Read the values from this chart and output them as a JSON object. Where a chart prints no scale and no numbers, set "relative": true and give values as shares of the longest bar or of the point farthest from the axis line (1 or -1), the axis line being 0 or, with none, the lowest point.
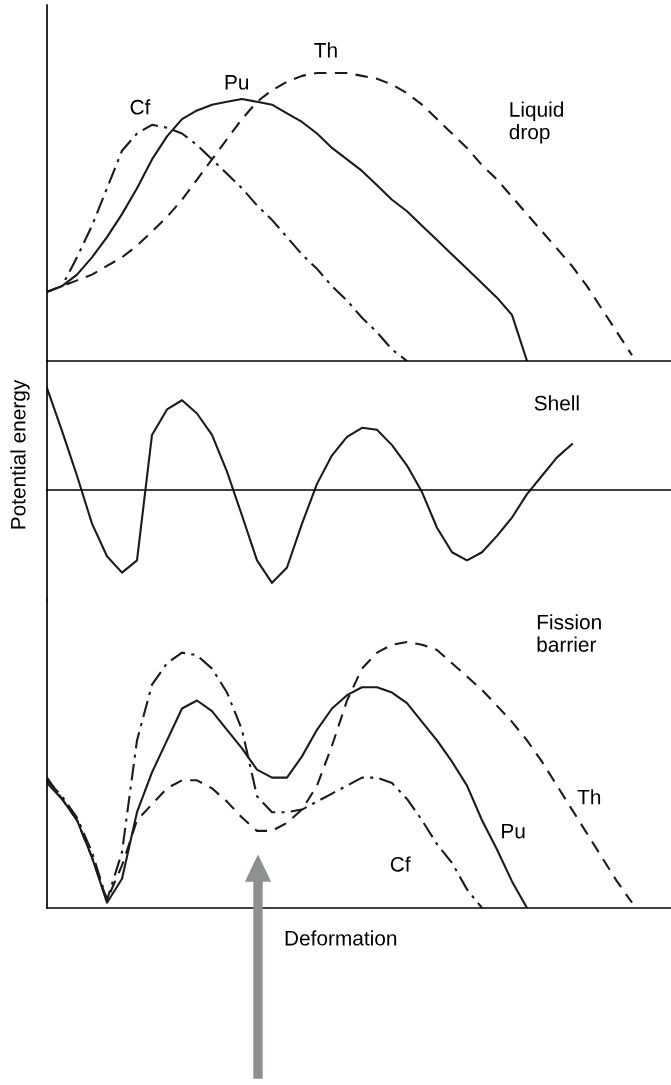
{
  "chart_data": [
    {
      "type": "line",
      "title": "Liquid\ndrop",
      "relative": true,
      "categories": [
        null,
        null,
        null,
        null,
        null,
        null,
        null,
        null,
        null,
        null,
        null,
        null,
        null,
        null,
        null,
        null,
        null,
        null,
        null,
        null,
        null,
        null,
        null,
        null,
        null,
        null,
        null,
        null,
        null,
        null,
        null,
        null,
        null,
        null,
        null,
        null,
        null,
        null,
        null,
        null
      ],
      "series": [
        {
          "name": "Cf",
          "color": "#1a1a1a",
          "line_style": "dashdot",
          "values": [
            0.24,
            0.26,
            0.36,
            0.47,
            0.6,
            0.73,
            0.79,
            0.82,
            0.81,
            0.79,
            0.75,
            0.7,
            0.65,
            0.6,
            0.54,
            0.49,
            0.43,
            0.37,
            0.32,
            0.26,
            0.21,
            0.15,
            0.1,
            0.04,
            0,
            null,
            null,
            null,
            null,
            null,
            null,
            null,
            null,
            null,
            null,
            null,
            null,
            null,
            null,
            null
          ]
        },
        {
          "name": "Pu",
          "color": "#1a1a1a",
          "line_style": "solid",
          "values": [
            0.24,
            0.26,
            0.3,
            0.36,
            0.43,
            0.51,
            0.6,
            0.7,
            0.78,
            0.84,
            0.87,
            0.89,
            0.9,
            0.91,
            0.9,
            0.89,
            0.86,
            0.83,
            0.79,
            0.74,
            0.7,
            0.66,
            0.61,
            0.56,
            0.52,
            0.47,
            0.42,
            0.37,
            0.32,
            0.27,
            0.22,
            0.16,
            0,
            null,
            null,
            null,
            null,
            null,
            null,
            null
          ]
        },
        {
          "name": "Th",
          "color": "#1a1a1a",
          "line_style": "dashed",
          "values": [
            0.24,
            0.26,
            0.28,
            0.3,
            0.33,
            0.36,
            0.4,
            0.45,
            0.5,
            0.56,
            0.63,
            0.7,
            0.77,
            0.84,
            0.9,
            0.94,
            0.97,
            0.99,
            1,
            1,
            1,
            0.99,
            0.98,
            0.96,
            0.93,
            0.89,
            0.84,
            0.79,
            0.74,
            0.68,
            0.63,
            0.57,
            0.51,
            0.45,
            0.39,
            0.33,
            0.26,
            0.18,
            0.1,
            0.02
          ]
        }
      ]
    },
    {
      "type": "line",
      "title": "Shell",
      "ylabel": "Potential energy",
      "relative": true,
      "categories": [
        null,
        null,
        null,
        null,
        null,
        null,
        null,
        null,
        null,
        null,
        null,
        null,
        null,
        null,
        null,
        null,
        null,
        null,
        null,
        null,
        null,
        null,
        null,
        null,
        null,
        null,
        null,
        null,
        null,
        null,
        null,
        null,
        null,
        null,
        null,
        null,
        null,
        null,
        null,
        null
      ],
      "series": [
        {
          "color": "#1a1a1a",
          "line_style": "solid",
          "values": [
            1,
            0.58,
            0.14,
            -0.33,
            -0.65,
            -0.81,
            -0.69,
            0.54,
            0.79,
            0.88,
            0.75,
            0.54,
            0.18,
            -0.25,
            -0.69,
            -0.91,
            -0.76,
            -0.33,
            0.06,
            0.34,
            0.52,
            0.61,
            0.59,
            0.44,
            0.24,
            -0.02,
            -0.37,
            -0.61,
            -0.69,
            -0.61,
            -0.45,
            -0.27,
            -0.04,
            0.14,
            0.32,
            0.45,
            null,
            null,
            null,
            null
          ]
        }
      ]
    },
    {
      "type": "line",
      "title": "Fission\nbarrier",
      "xlabel": "Deformation",
      "relative": true,
      "categories": [
        null,
        null,
        null,
        null,
        null,
        null,
        null,
        null,
        null,
        null,
        null,
        null,
        null,
        null,
        null,
        null,
        null,
        null,
        null,
        null,
        null,
        null,
        null,
        null,
        null,
        null,
        null,
        null,
        null,
        null,
        null,
        null,
        null,
        null,
        null,
        null,
        null,
        null,
        null,
        null
      ],
      "series": [
        {
          "name": "Cf",
          "color": "#1a1a1a",
          "line_style": "dashdot",
          "values": [
            0.48,
            0.42,
            0.34,
            0.21,
            0.03,
            0.21,
            0.63,
            0.84,
            0.92,
            0.96,
            0.95,
            0.9,
            0.81,
            0.67,
            0.42,
            0.36,
            0.36,
            0.37,
            0.4,
            0.43,
            0.46,
            0.49,
            0.49,
            0.47,
            0.41,
            0.33,
            0.24,
            0.17,
            0.07,
            0,
            null,
            null,
            null,
            null,
            null,
            null,
            null,
            null,
            null,
            null
          ]
        },
        {
          "name": "Pu",
          "color": "#1a1a1a",
          "line_style": "solid",
          "values": [
            0.47,
            0.41,
            0.33,
            0.19,
            0.02,
            0.11,
            0.36,
            0.51,
            0.63,
            0.75,
            0.78,
            0.74,
            0.67,
            0.6,
            0.52,
            0.49,
            0.49,
            0.57,
            0.67,
            0.75,
            0.8,
            0.83,
            0.83,
            0.81,
            0.77,
            0.7,
            0.63,
            0.55,
            0.46,
            0.33,
            0.22,
            0.1,
            0,
            null,
            null,
            null,
            null,
            null,
            null,
            null
          ]
        },
        {
          "name": "Th",
          "color": "#1a1a1a",
          "line_style": "dashed",
          "values": [
            0.49,
            0.41,
            0.33,
            0.19,
            0.03,
            0.16,
            0.33,
            0.39,
            0.45,
            0.48,
            0.48,
            0.45,
            0.4,
            0.34,
            0.29,
            0.29,
            0.32,
            0.37,
            0.46,
            0.61,
            0.78,
            0.9,
            0.96,
            0.99,
            1,
            0.99,
            0.97,
            0.92,
            0.87,
            0.82,
            0.76,
            0.7,
            0.63,
            0.55,
            0.46,
            0.37,
            0.28,
            0.19,
            0.1,
            0.02
          ]
        }
      ]
    }
  ]
}
